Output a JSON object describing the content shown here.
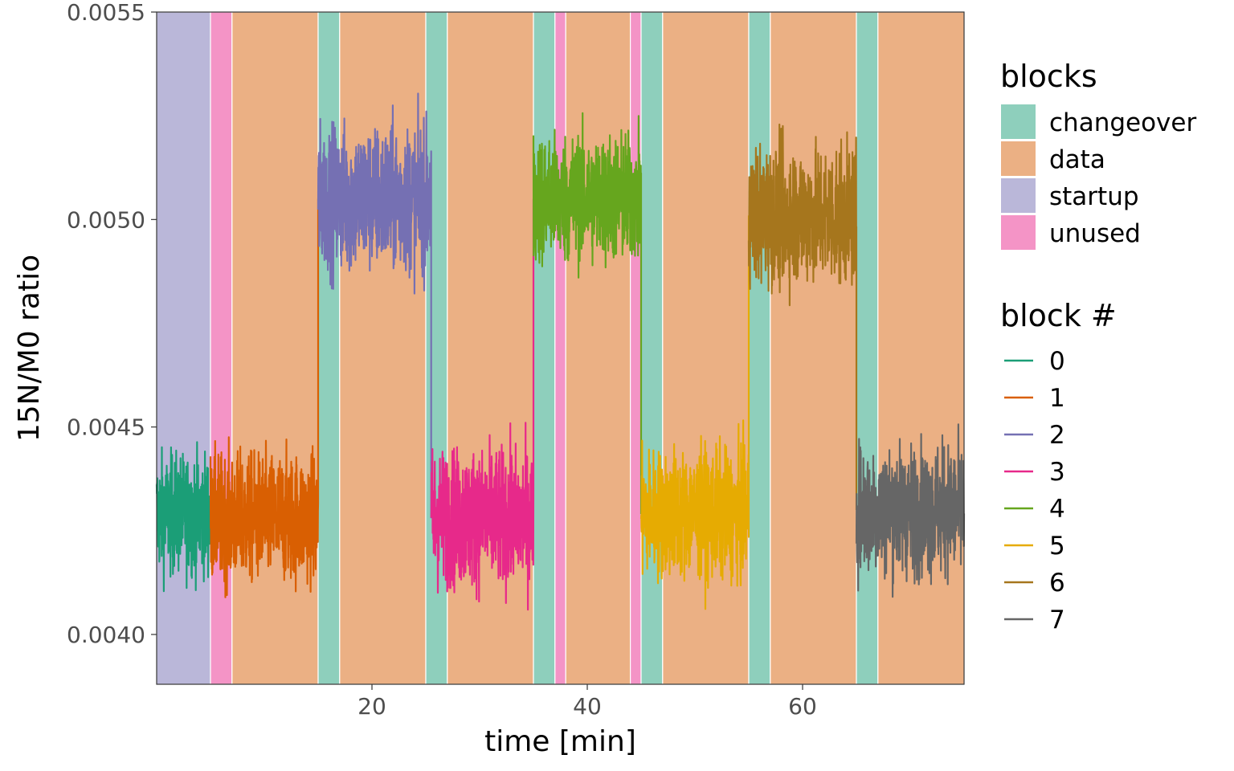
{
  "chart_data": {
    "type": "line",
    "xlabel": "time [min]",
    "ylabel": "15N/M0 ratio",
    "xlim": [
      0,
      75
    ],
    "ylim": [
      0.00388,
      0.0055
    ],
    "xticks": [
      {
        "v": 20,
        "label": "20"
      },
      {
        "v": 40,
        "label": "40"
      },
      {
        "v": 60,
        "label": "60"
      }
    ],
    "yticks": [
      {
        "v": 0.004,
        "label": "0.0040"
      },
      {
        "v": 0.0045,
        "label": "0.0045"
      },
      {
        "v": 0.005,
        "label": "0.0050"
      },
      {
        "v": 0.0055,
        "label": "0.0055"
      }
    ],
    "background_blocks": [
      {
        "type": "startup",
        "start": 0,
        "end": 5
      },
      {
        "type": "unused",
        "start": 5,
        "end": 7
      },
      {
        "type": "data",
        "start": 7,
        "end": 15
      },
      {
        "type": "changeover",
        "start": 15,
        "end": 17
      },
      {
        "type": "data",
        "start": 17,
        "end": 25
      },
      {
        "type": "changeover",
        "start": 25,
        "end": 27
      },
      {
        "type": "data",
        "start": 27,
        "end": 35
      },
      {
        "type": "changeover",
        "start": 35,
        "end": 37
      },
      {
        "type": "unused",
        "start": 37,
        "end": 38
      },
      {
        "type": "data",
        "start": 38,
        "end": 44
      },
      {
        "type": "unused",
        "start": 44,
        "end": 45
      },
      {
        "type": "changeover",
        "start": 45,
        "end": 47
      },
      {
        "type": "data",
        "start": 47,
        "end": 55
      },
      {
        "type": "changeover",
        "start": 55,
        "end": 57
      },
      {
        "type": "data",
        "start": 57,
        "end": 65
      },
      {
        "type": "changeover",
        "start": 65,
        "end": 67
      },
      {
        "type": "data",
        "start": 67,
        "end": 75
      }
    ],
    "legend_blocks": {
      "title": "blocks",
      "items": [
        {
          "name": "changeover",
          "color": "#8ECFBC"
        },
        {
          "name": "data",
          "color": "#EBB084"
        },
        {
          "name": "startup",
          "color": "#BAB7D9"
        },
        {
          "name": "unused",
          "color": "#F494C6"
        }
      ]
    },
    "legend_block_num": {
      "title": "block #",
      "items": [
        {
          "name": "0",
          "color": "#1B9E77"
        },
        {
          "name": "1",
          "color": "#D95F02"
        },
        {
          "name": "2",
          "color": "#7570B3"
        },
        {
          "name": "3",
          "color": "#E7298A"
        },
        {
          "name": "4",
          "color": "#66A61E"
        },
        {
          "name": "5",
          "color": "#E6AB02"
        },
        {
          "name": "6",
          "color": "#A6761D"
        },
        {
          "name": "7",
          "color": "#666666"
        }
      ]
    },
    "series": [
      {
        "name": "0",
        "color": "#1B9E77",
        "x_start": 0,
        "x_end": 5,
        "mean": 0.00429,
        "spread": 0.00013
      },
      {
        "name": "1",
        "color": "#D95F02",
        "x_start": 5,
        "x_end": 15,
        "mean": 0.00428,
        "spread": 0.00014
      },
      {
        "name": "2",
        "color": "#7570B3",
        "x_start": 15,
        "x_end": 25.5,
        "mean": 0.00505,
        "spread": 0.00016
      },
      {
        "name": "3",
        "color": "#E7298A",
        "x_start": 25.5,
        "x_end": 35,
        "mean": 0.00428,
        "spread": 0.00015
      },
      {
        "name": "4",
        "color": "#66A61E",
        "x_start": 35,
        "x_end": 45,
        "mean": 0.00505,
        "spread": 0.00014
      },
      {
        "name": "5",
        "color": "#E6AB02",
        "x_start": 45,
        "x_end": 55,
        "mean": 0.00429,
        "spread": 0.00014
      },
      {
        "name": "6",
        "color": "#A6761D",
        "x_start": 55,
        "x_end": 65,
        "mean": 0.00501,
        "spread": 0.00015
      },
      {
        "name": "7",
        "color": "#666666",
        "x_start": 65,
        "x_end": 75,
        "mean": 0.0043,
        "spread": 0.00014
      }
    ]
  }
}
